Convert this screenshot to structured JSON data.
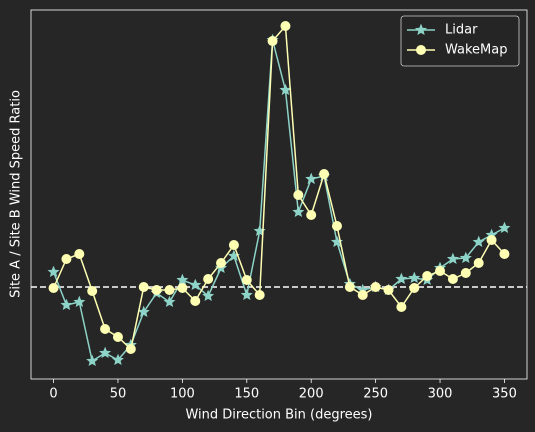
{
  "chart_data": {
    "type": "line",
    "xlabel": "Wind Direction Bin (degrees)",
    "ylabel": "Site A / Site B Wind Speed Ratio",
    "x": [
      0,
      10,
      20,
      30,
      40,
      50,
      60,
      70,
      80,
      90,
      100,
      110,
      120,
      130,
      140,
      150,
      160,
      170,
      180,
      190,
      200,
      210,
      220,
      230,
      240,
      250,
      260,
      270,
      280,
      290,
      300,
      310,
      320,
      330,
      340,
      350
    ],
    "series": [
      {
        "name": "Lidar",
        "color": "#8dd3c7",
        "marker": "star",
        "values": [
          1.015,
          0.982,
          0.985,
          0.926,
          0.934,
          0.927,
          0.942,
          0.975,
          0.994,
          0.985,
          1.007,
          1.002,
          0.991,
          1.019,
          1.031,
          0.992,
          1.056,
          1.247,
          1.197,
          1.075,
          1.108,
          1.111,
          1.045,
          1.003,
          0.997,
          1.0,
          0.997,
          1.008,
          1.009,
          1.007,
          1.019,
          1.028,
          1.029,
          1.045,
          1.052,
          1.059
        ]
      },
      {
        "name": "WakeMap",
        "color": "#feffb3",
        "marker": "circle",
        "values": [
          0.999,
          1.028,
          1.033,
          0.996,
          0.958,
          0.95,
          0.938,
          1.0,
          0.997,
          0.997,
          0.999,
          0.986,
          1.008,
          1.024,
          1.042,
          1.007,
          0.992,
          1.246,
          1.261,
          1.092,
          1.072,
          1.113,
          1.061,
          1.0,
          0.992,
          1.0,
          0.997,
          0.98,
          0.999,
          1.011,
          1.016,
          1.008,
          1.014,
          1.024,
          1.047,
          1.033
        ]
      }
    ],
    "hline": 1,
    "xlim": [
      -17.5,
      367.5
    ],
    "xticks": [
      0,
      50,
      100,
      150,
      200,
      250,
      300,
      350
    ],
    "ylim": [
      0.908,
      1.277
    ],
    "legend": "upper right"
  }
}
